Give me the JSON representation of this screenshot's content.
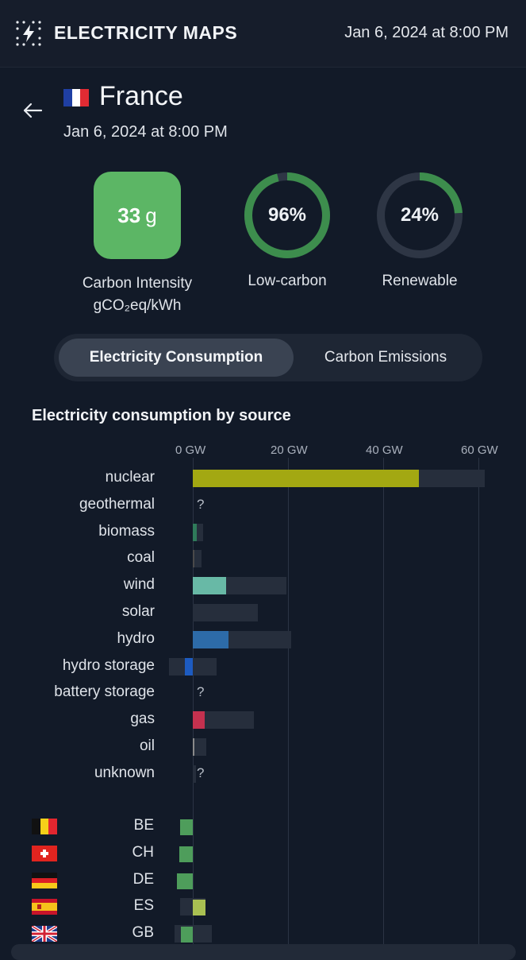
{
  "app": {
    "title": "ELECTRICITY MAPS",
    "datetime": "Jan 6, 2024 at 8:00 PM"
  },
  "zone": {
    "name": "France",
    "datetime": "Jan 6, 2024 at 8:00 PM"
  },
  "metrics": {
    "carbon_intensity": {
      "value": "33",
      "unit": "g",
      "label": "Carbon Intensity",
      "unit_label": "gCO₂eq/kWh",
      "color": "#5cb665"
    },
    "low_carbon": {
      "percent": 96,
      "text": "96%",
      "label": "Low-carbon"
    },
    "renewable": {
      "percent": 24,
      "text": "24%",
      "label": "Renewable"
    }
  },
  "tabs": {
    "active": "Electricity Consumption",
    "inactive": "Carbon Emissions"
  },
  "section_title": "Electricity consumption by source",
  "chart_data": {
    "type": "bar",
    "title": "Electricity consumption by source",
    "xlim": [
      -5,
      62
    ],
    "ticks": [
      {
        "value": 0,
        "label": "0 GW"
      },
      {
        "value": 20,
        "label": "20 GW"
      },
      {
        "value": 40,
        "label": "40 GW"
      },
      {
        "value": 60,
        "label": "60 GW"
      }
    ],
    "sources": [
      {
        "name": "nuclear",
        "value": 47.5,
        "capacity": 61.4,
        "color": "#a3a812",
        "unknown": false
      },
      {
        "name": "geothermal",
        "value": null,
        "capacity": null,
        "color": "#888888",
        "unknown": true
      },
      {
        "name": "biomass",
        "value": 0.8,
        "capacity": 2.2,
        "color": "#2f7a5a",
        "unknown": false
      },
      {
        "name": "coal",
        "value": 0.1,
        "capacity": 1.8,
        "color": "#4a4a4a",
        "unknown": false
      },
      {
        "name": "wind",
        "value": 7.0,
        "capacity": 19.7,
        "color": "#68b9a6",
        "unknown": false
      },
      {
        "name": "solar",
        "value": 0,
        "capacity": 13.7,
        "color": "#e8c25a",
        "unknown": false
      },
      {
        "name": "hydro",
        "value": 7.5,
        "capacity": 20.7,
        "color": "#2d6ba8",
        "unknown": false
      },
      {
        "name": "hydro storage",
        "value": -1.7,
        "capacity": 5.0,
        "min_capacity": -5.0,
        "color": "#1d5bc0",
        "unknown": false
      },
      {
        "name": "battery storage",
        "value": null,
        "capacity": null,
        "color": "#888888",
        "unknown": true
      },
      {
        "name": "gas",
        "value": 2.5,
        "capacity": 12.9,
        "color": "#c4314f",
        "unknown": false
      },
      {
        "name": "oil",
        "value": 0.2,
        "capacity": 2.9,
        "color": "#8a8a8a",
        "unknown": false
      },
      {
        "name": "unknown",
        "value": null,
        "capacity": 0.6,
        "color": "#888888",
        "unknown": true
      }
    ],
    "exchanges": [
      {
        "code": "BE",
        "value": -2.6,
        "capacity": 0,
        "color": "#4e9d5b"
      },
      {
        "code": "CH",
        "value": -2.8,
        "capacity": 0,
        "color": "#4e9d5b"
      },
      {
        "code": "DE",
        "value": -3.3,
        "capacity": 0,
        "color": "#4e9d5b"
      },
      {
        "code": "ES",
        "value": 2.7,
        "min_capacity": -2.7,
        "capacity": 2.7,
        "color": "#a9c052"
      },
      {
        "code": "GB",
        "value": -2.5,
        "min_capacity": -3.8,
        "capacity": 4.0,
        "color": "#4e9d5b"
      }
    ],
    "unknown_marker": "?"
  }
}
